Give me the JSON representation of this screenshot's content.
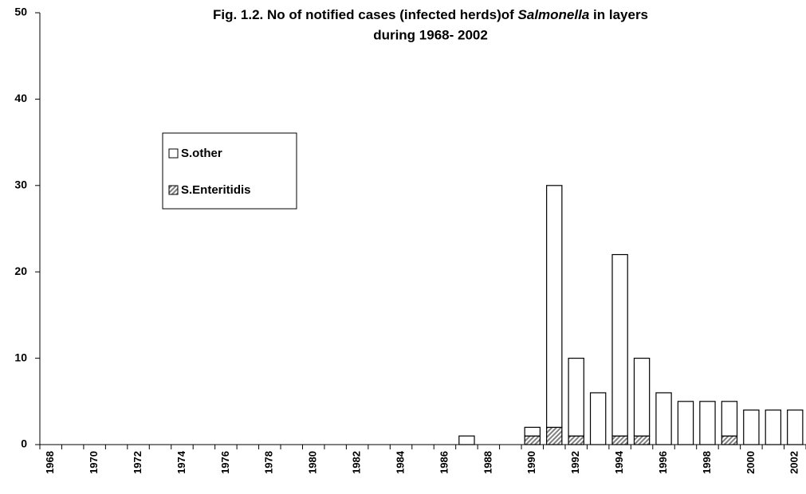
{
  "chart_data": {
    "type": "stacked_bar",
    "title": [
      "Fig. 1.2.  No of notified cases (infected herds)of ",
      "Salmonella",
      " in layers",
      "during 1968- 2002"
    ],
    "categories": [
      "1968",
      null,
      "1970",
      null,
      "1972",
      null,
      "1974",
      null,
      "1976",
      null,
      "1978",
      null,
      "1980",
      null,
      "1982",
      null,
      "1984",
      null,
      "1986",
      null,
      "1988",
      null,
      "1990",
      null,
      "1992",
      null,
      "1994",
      null,
      "1996",
      null,
      "1998",
      null,
      "2000",
      null,
      "2002"
    ],
    "series": [
      {
        "name": "S.Enteritidis",
        "color": "#7f7f7f",
        "hatch": true,
        "values": [
          0,
          0,
          0,
          0,
          0,
          0,
          0,
          0,
          0,
          0,
          0,
          0,
          0,
          0,
          0,
          0,
          0,
          0,
          0,
          0,
          0,
          0,
          1,
          2,
          1,
          0,
          1,
          1,
          0,
          0,
          0,
          1,
          0,
          0,
          0
        ]
      },
      {
        "name": "S.other",
        "color": "#ffffff",
        "hatch": false,
        "values": [
          0,
          0,
          0,
          0,
          0,
          0,
          0,
          0,
          0,
          0,
          0,
          0,
          0,
          0,
          0,
          0,
          0,
          0,
          0,
          1,
          0,
          0,
          1,
          28,
          9,
          6,
          21,
          9,
          6,
          5,
          5,
          4,
          4,
          4,
          4
        ]
      }
    ],
    "ylim": [
      0,
      50
    ],
    "yticks": [
      0,
      10,
      20,
      30,
      40,
      50
    ],
    "grid": false
  }
}
